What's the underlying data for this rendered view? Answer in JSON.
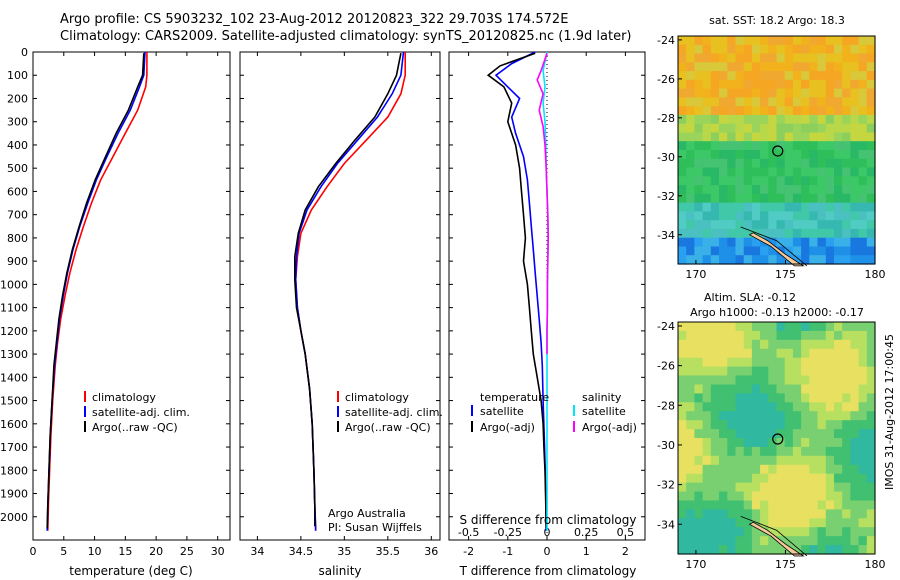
{
  "title_line1": "Argo profile: CS 5903232_102 23-Aug-2012 20120823_322 29.703S 174.572E",
  "title_line2": "Climatology: CARS2009. Satellite-adjusted climatology: synTS_20120825.nc (1.9d later)",
  "sst_title": "sat. SST: 18.2 Argo: 18.3",
  "sla_title_1": "Altim. SLA: -0.12",
  "sla_title_2": "Argo h1000: -0.13 h2000: -0.17",
  "footer_stamp": "IMOS 31-Aug-2012 17:00:45",
  "colors": {
    "climatology": "#ff0000",
    "satellite": "#0000ff",
    "argo": "#000000",
    "sat_salinity": "#00e5ff",
    "argo_salinity": "#ff00ff"
  },
  "chart_data": [
    {
      "type": "line",
      "xlabel": "temperature (deg C)",
      "ylabel": "",
      "xlim": [
        0,
        32
      ],
      "ylim": [
        2100,
        0
      ],
      "xticks": [
        0,
        5,
        10,
        15,
        20,
        25,
        30
      ],
      "yticks": [
        0,
        100,
        200,
        300,
        400,
        500,
        600,
        700,
        800,
        900,
        1000,
        1100,
        1200,
        1300,
        1400,
        1500,
        1600,
        1700,
        1800,
        1900,
        2000
      ],
      "legend": {
        "position": "lower-left",
        "entries": [
          "climatology",
          "satellite-adj. clim.",
          "Argo(..raw -QC)"
        ]
      },
      "series": [
        {
          "name": "climatology",
          "color": "#ff0000",
          "points": [
            [
              18.5,
              0
            ],
            [
              18.5,
              100
            ],
            [
              18.3,
              150
            ],
            [
              17,
              250
            ],
            [
              15,
              350
            ],
            [
              13,
              450
            ],
            [
              11,
              550
            ],
            [
              9.5,
              650
            ],
            [
              8.2,
              750
            ],
            [
              7,
              850
            ],
            [
              6,
              950
            ],
            [
              5.2,
              1050
            ],
            [
              4.5,
              1150
            ],
            [
              4,
              1250
            ],
            [
              3.6,
              1350
            ],
            [
              3.2,
              1500
            ],
            [
              2.9,
              1650
            ],
            [
              2.7,
              1800
            ],
            [
              2.5,
              1950
            ],
            [
              2.4,
              2060
            ]
          ]
        },
        {
          "name": "satellite-adj. clim.",
          "color": "#0000ff",
          "points": [
            [
              18.2,
              0
            ],
            [
              18,
              100
            ],
            [
              17.3,
              150
            ],
            [
              15.8,
              250
            ],
            [
              13.8,
              350
            ],
            [
              12,
              450
            ],
            [
              10.3,
              550
            ],
            [
              8.9,
              650
            ],
            [
              7.6,
              750
            ],
            [
              6.5,
              850
            ],
            [
              5.6,
              950
            ],
            [
              4.9,
              1050
            ],
            [
              4.3,
              1150
            ],
            [
              3.9,
              1250
            ],
            [
              3.5,
              1350
            ],
            [
              3.1,
              1500
            ],
            [
              2.8,
              1650
            ],
            [
              2.6,
              1800
            ],
            [
              2.4,
              1950
            ],
            [
              2.3,
              2060
            ]
          ]
        },
        {
          "name": "Argo(..raw -QC)",
          "color": "#000000",
          "points": [
            [
              18,
              5
            ],
            [
              17.8,
              100
            ],
            [
              17,
              150
            ],
            [
              15.5,
              250
            ],
            [
              13.5,
              350
            ],
            [
              11.8,
              450
            ],
            [
              10.1,
              550
            ],
            [
              8.7,
              650
            ],
            [
              7.5,
              750
            ],
            [
              6.4,
              850
            ],
            [
              5.5,
              950
            ],
            [
              4.8,
              1050
            ],
            [
              4.2,
              1150
            ],
            [
              3.8,
              1250
            ],
            [
              3.4,
              1350
            ],
            [
              3.1,
              1500
            ],
            [
              2.8,
              1650
            ],
            [
              2.6,
              1800
            ],
            [
              2.4,
              1950
            ],
            [
              2.3,
              2050
            ]
          ]
        }
      ]
    },
    {
      "type": "line",
      "xlabel": "salinity",
      "xlim": [
        33.8,
        36.1
      ],
      "ylim": [
        2100,
        0
      ],
      "xticks": [
        34,
        34.5,
        35,
        35.5,
        36
      ],
      "legend": {
        "position": "lower-right",
        "entries": [
          "climatology",
          "satellite-adj. clim.",
          "Argo(..raw -QC)"
        ]
      },
      "annotation_1": "Argo Australia",
      "annotation_2": "PI: Susan Wijffels",
      "series": [
        {
          "name": "climatology",
          "color": "#ff0000",
          "points": [
            [
              35.7,
              0
            ],
            [
              35.7,
              100
            ],
            [
              35.65,
              180
            ],
            [
              35.5,
              280
            ],
            [
              35.25,
              380
            ],
            [
              35.0,
              480
            ],
            [
              34.8,
              580
            ],
            [
              34.62,
              680
            ],
            [
              34.5,
              780
            ],
            [
              34.46,
              880
            ],
            [
              34.44,
              980
            ],
            [
              34.46,
              1100
            ],
            [
              34.5,
              1200
            ],
            [
              34.55,
              1300
            ],
            [
              34.6,
              1450
            ],
            [
              34.63,
              1600
            ],
            [
              34.65,
              1800
            ],
            [
              34.66,
              1950
            ],
            [
              34.67,
              2060
            ]
          ]
        },
        {
          "name": "satellite-adj. clim.",
          "color": "#0000ff",
          "points": [
            [
              35.68,
              0
            ],
            [
              35.65,
              100
            ],
            [
              35.55,
              180
            ],
            [
              35.38,
              280
            ],
            [
              35.15,
              380
            ],
            [
              34.92,
              480
            ],
            [
              34.73,
              580
            ],
            [
              34.57,
              680
            ],
            [
              34.48,
              780
            ],
            [
              34.45,
              880
            ],
            [
              34.44,
              980
            ],
            [
              34.46,
              1100
            ],
            [
              34.5,
              1200
            ],
            [
              34.55,
              1300
            ],
            [
              34.6,
              1450
            ],
            [
              34.63,
              1600
            ],
            [
              34.65,
              1800
            ],
            [
              34.66,
              1950
            ],
            [
              34.67,
              2060
            ]
          ]
        },
        {
          "name": "Argo(..raw -QC)",
          "color": "#000000",
          "points": [
            [
              35.65,
              5
            ],
            [
              35.6,
              100
            ],
            [
              35.5,
              180
            ],
            [
              35.35,
              280
            ],
            [
              35.12,
              380
            ],
            [
              34.9,
              480
            ],
            [
              34.7,
              580
            ],
            [
              34.55,
              680
            ],
            [
              34.47,
              780
            ],
            [
              34.43,
              880
            ],
            [
              34.43,
              980
            ],
            [
              34.45,
              1100
            ],
            [
              34.5,
              1200
            ],
            [
              34.55,
              1300
            ],
            [
              34.6,
              1450
            ],
            [
              34.63,
              1600
            ],
            [
              34.65,
              1800
            ],
            [
              34.66,
              1950
            ],
            [
              34.66,
              2040
            ]
          ]
        }
      ]
    },
    {
      "type": "line",
      "xlabel": "T difference from climatology",
      "xlabel_top": "S difference from climatology",
      "xlim": [
        -2.5,
        2.5
      ],
      "ylim": [
        2100,
        0
      ],
      "xticks": [
        -2,
        -1,
        0,
        1,
        2
      ],
      "xticks_top": [
        -0.5,
        -0.25,
        0,
        0.25,
        0.5
      ],
      "xtick_labels_top": [
        "-0.5",
        "-0.25",
        "0",
        "0.25",
        "0.5"
      ],
      "legend_temperature": {
        "heading": "temperature",
        "entries": [
          "satellite",
          "Argo(-adj)"
        ]
      },
      "legend_salinity": {
        "heading": "salinity",
        "entries": [
          "satellite",
          "Argo(-adj)"
        ]
      },
      "series": [
        {
          "name": "temperature satellite",
          "color": "#0000ff",
          "points": [
            [
              -0.3,
              0
            ],
            [
              -0.9,
              50
            ],
            [
              -1.3,
              100
            ],
            [
              -1.0,
              150
            ],
            [
              -0.7,
              200
            ],
            [
              -0.9,
              280
            ],
            [
              -0.8,
              350
            ],
            [
              -0.6,
              450
            ],
            [
              -0.5,
              550
            ],
            [
              -0.45,
              650
            ],
            [
              -0.4,
              750
            ],
            [
              -0.35,
              850
            ],
            [
              -0.3,
              950
            ],
            [
              -0.25,
              1050
            ],
            [
              -0.2,
              1150
            ],
            [
              -0.15,
              1250
            ],
            [
              -0.12,
              1350
            ],
            [
              -0.1,
              1500
            ],
            [
              -0.06,
              1700
            ],
            [
              -0.03,
              1900
            ],
            [
              -0.02,
              2060
            ]
          ]
        },
        {
          "name": "temperature Argo(-adj)",
          "color": "#000000",
          "points": [
            [
              -0.3,
              5
            ],
            [
              -1.2,
              60
            ],
            [
              -1.5,
              100
            ],
            [
              -1.1,
              150
            ],
            [
              -0.9,
              220
            ],
            [
              -1.0,
              300
            ],
            [
              -0.8,
              400
            ],
            [
              -0.7,
              500
            ],
            [
              -0.65,
              600
            ],
            [
              -0.6,
              700
            ],
            [
              -0.55,
              800
            ],
            [
              -0.6,
              900
            ],
            [
              -0.5,
              1000
            ],
            [
              -0.45,
              1100
            ],
            [
              -0.4,
              1200
            ],
            [
              -0.35,
              1300
            ],
            [
              -0.25,
              1400
            ],
            [
              -0.15,
              1500
            ],
            [
              -0.1,
              1600
            ],
            [
              -0.08,
              1700
            ],
            [
              -0.05,
              1800
            ],
            [
              -0.03,
              1950
            ],
            [
              -0.02,
              2050
            ]
          ]
        },
        {
          "name": "salinity satellite",
          "color": "#00e5ff",
          "points": [
            [
              0.0,
              0
            ],
            [
              -0.1,
              80
            ],
            [
              -0.05,
              150
            ],
            [
              -0.1,
              220
            ],
            [
              -0.05,
              300
            ],
            [
              -0.03,
              400
            ],
            [
              -0.02,
              500
            ],
            [
              0.0,
              600
            ],
            [
              0.02,
              700
            ],
            [
              0.03,
              800
            ],
            [
              0.02,
              900
            ],
            [
              0.01,
              1000
            ],
            [
              0.01,
              1100
            ],
            [
              0.0,
              1200
            ],
            [
              0.0,
              1400
            ],
            [
              0.0,
              1600
            ],
            [
              0.0,
              1800
            ],
            [
              0.0,
              2000
            ],
            [
              0.0,
              2060
            ]
          ]
        },
        {
          "name": "salinity Argo(-adj)",
          "color": "#ff00ff",
          "points": [
            [
              0.0,
              5
            ],
            [
              -0.15,
              80
            ],
            [
              -0.25,
              120
            ],
            [
              -0.1,
              180
            ],
            [
              -0.2,
              250
            ],
            [
              -0.1,
              320
            ],
            [
              -0.05,
              400
            ],
            [
              -0.02,
              500
            ],
            [
              0.0,
              600
            ],
            [
              0.02,
              700
            ],
            [
              0.03,
              800
            ],
            [
              0.02,
              900
            ],
            [
              0.01,
              1000
            ],
            [
              0.01,
              1100
            ],
            [
              0.0,
              1200
            ],
            [
              0.0,
              1300
            ]
          ]
        }
      ]
    },
    {
      "type": "heatmap",
      "title": "sat. SST: 18.2 Argo: 18.3",
      "xlim": [
        169,
        180
      ],
      "ylim": [
        -35.5,
        -23.8
      ],
      "xticks": [
        170,
        175,
        180
      ],
      "yticks": [
        -24,
        -26,
        -28,
        -30,
        -32,
        -34
      ],
      "marker": [
        174.57,
        -29.7
      ]
    },
    {
      "type": "heatmap",
      "title": "Altim. SLA: -0.12 / Argo h1000: -0.13 h2000: -0.17",
      "xlim": [
        169,
        180
      ],
      "ylim": [
        -35.5,
        -23.8
      ],
      "xticks": [
        170,
        175,
        180
      ],
      "yticks": [
        -24,
        -26,
        -28,
        -30,
        -32,
        -34
      ],
      "marker": [
        174.57,
        -29.7
      ]
    }
  ]
}
